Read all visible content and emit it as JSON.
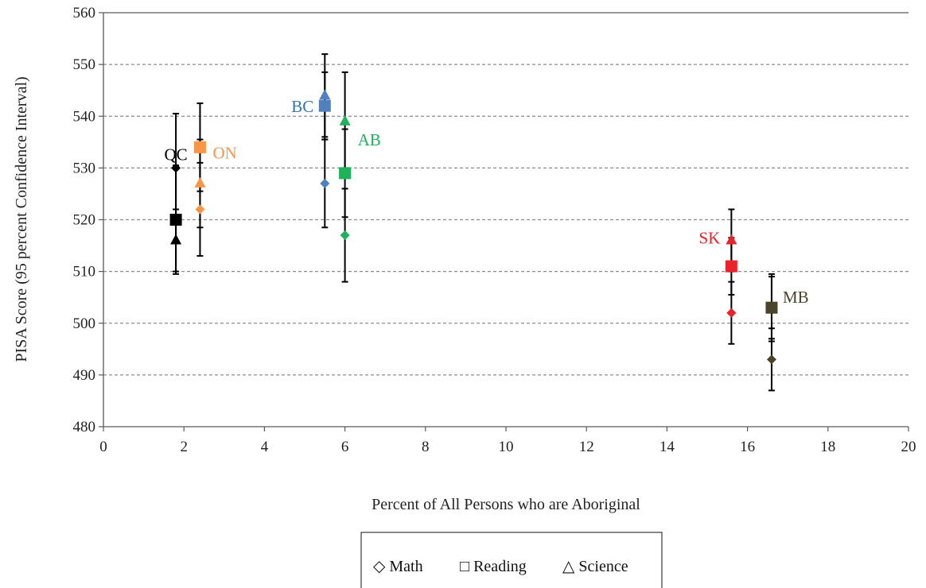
{
  "chart_data": {
    "type": "scatter",
    "title": "",
    "xlabel": "Percent of All Persons who are Aboriginal",
    "ylabel": "PISA Score  (95 percent Confidence Interval)",
    "xlim": [
      0,
      20
    ],
    "ylim": [
      480,
      560
    ],
    "x_ticks": [
      0,
      2,
      4,
      6,
      8,
      10,
      12,
      14,
      16,
      18,
      20
    ],
    "y_ticks": [
      480,
      490,
      500,
      510,
      520,
      530,
      540,
      550,
      560
    ],
    "grid": "horizontal dashed",
    "legend_position": "bottom",
    "legend": [
      {
        "symbol": "◇",
        "label": "Math",
        "marker": "diamond"
      },
      {
        "symbol": "□",
        "label": "Reading",
        "marker": "square"
      },
      {
        "symbol": "△",
        "label": "Science",
        "marker": "triangle"
      }
    ],
    "provinces": [
      {
        "label": "QC",
        "color": "#000000",
        "label_color": "#000000",
        "math": {
          "x": 1.8,
          "y": 530,
          "lo": 519.5,
          "hi": 540.5
        },
        "reading": {
          "x": 1.8,
          "y": 520,
          "lo": 509.5,
          "hi": 530.5
        },
        "science": {
          "x": 1.8,
          "y": 516,
          "lo": 510,
          "hi": 522
        }
      },
      {
        "label": "ON",
        "color": "#f79646",
        "label_color": "#f79646",
        "math": {
          "x": 2.4,
          "y": 522,
          "lo": 513,
          "hi": 531
        },
        "reading": {
          "x": 2.4,
          "y": 534,
          "lo": 525.5,
          "hi": 542.5
        },
        "science": {
          "x": 2.4,
          "y": 527,
          "lo": 518.5,
          "hi": 535.5
        }
      },
      {
        "label": "BC",
        "color": "#4f81bd",
        "label_color": "#2e75b6",
        "math": {
          "x": 5.5,
          "y": 527,
          "lo": 518.5,
          "hi": 535.5
        },
        "reading": {
          "x": 5.5,
          "y": 542,
          "lo": 535.5,
          "hi": 548.5
        },
        "science": {
          "x": 5.5,
          "y": 544,
          "lo": 536,
          "hi": 552
        }
      },
      {
        "label": "AB",
        "color": "#1fb25a",
        "label_color": "#1fb25a",
        "math": {
          "x": 6.0,
          "y": 517,
          "lo": 508,
          "hi": 526
        },
        "reading": {
          "x": 6.0,
          "y": 529,
          "lo": 520.5,
          "hi": 537.5
        },
        "science": {
          "x": 6.0,
          "y": 539,
          "lo": 529.5,
          "hi": 548.5
        }
      },
      {
        "label": "SK",
        "color": "#e8232a",
        "label_color": "#e8232a",
        "math": {
          "x": 15.6,
          "y": 502,
          "lo": 496,
          "hi": 508
        },
        "reading": {
          "x": 15.6,
          "y": 511,
          "lo": 505.5,
          "hi": 516.5
        },
        "science": {
          "x": 15.6,
          "y": 516,
          "lo": 510,
          "hi": 522
        }
      },
      {
        "label": "MB",
        "color": "#4a452a",
        "label_color": "#4a452a",
        "math": {
          "x": 16.6,
          "y": 493,
          "lo": 487,
          "hi": 499
        },
        "reading": {
          "x": 16.6,
          "y": 503,
          "lo": 496.5,
          "hi": 509.5
        },
        "science": {
          "x": 16.6,
          "y": 503,
          "lo": 497,
          "hi": 509
        }
      }
    ]
  },
  "colors": {
    "axis": "#595959",
    "grid": "#8c8c8c",
    "errorbar": "#000000"
  }
}
